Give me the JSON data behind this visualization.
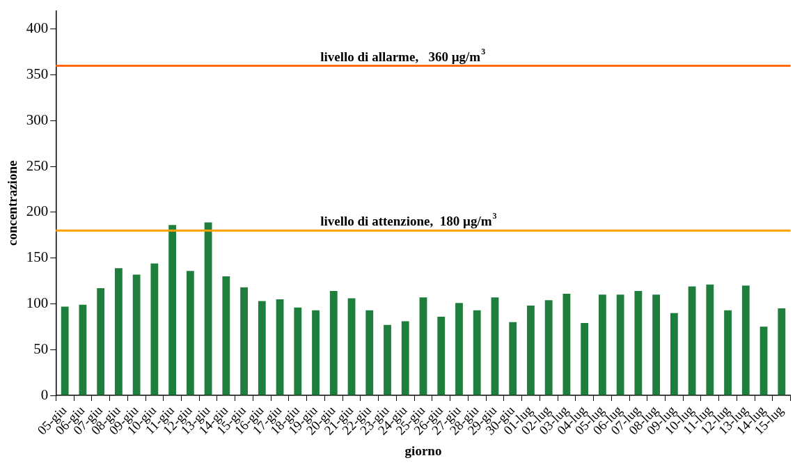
{
  "chart_data": {
    "type": "bar",
    "xlabel": "giorno",
    "ylabel": "concentrazione",
    "categories": [
      "05-giu",
      "06-giu",
      "07-giu",
      "08-giu",
      "09-giu",
      "10-giu",
      "11-giu",
      "12-giu",
      "13-giu",
      "14-giu",
      "15-giu",
      "16-giu",
      "17-giu",
      "18-giu",
      "19-giu",
      "20-giu",
      "21-giu",
      "22-giu",
      "23-giu",
      "24-giu",
      "25-giu",
      "26-giu",
      "27-giu",
      "28-giu",
      "29-giu",
      "30-giu",
      "01-lug",
      "02-lug",
      "03-lug",
      "04-lug",
      "05-lug",
      "06-lug",
      "07-lug",
      "08-lug",
      "09-lug",
      "10-lug",
      "11-lug",
      "12-lug",
      "13-lug",
      "14-lug",
      "15-lug"
    ],
    "values": [
      97,
      99,
      117,
      139,
      132,
      144,
      186,
      136,
      189,
      130,
      118,
      103,
      105,
      96,
      93,
      114,
      106,
      93,
      77,
      81,
      107,
      86,
      101,
      93,
      107,
      80,
      98,
      104,
      111,
      79,
      110,
      110,
      114,
      110,
      90,
      119,
      121,
      93,
      120,
      75,
      95
    ],
    "color": "#1e7f3c",
    "ylim": [
      0,
      420
    ],
    "yticks": [
      0,
      50,
      100,
      150,
      200,
      250,
      300,
      350,
      400
    ],
    "grid": false,
    "ref_lines": [
      {
        "axis": "y",
        "value": 360,
        "label": "livello di allarme,   360 µg/m$^{3}$",
        "color": "#ff6a13"
      },
      {
        "axis": "y",
        "value": 180,
        "label": "livello di attenzione,  180 µg/m$^{3}$",
        "color": "#ffa000"
      }
    ]
  }
}
